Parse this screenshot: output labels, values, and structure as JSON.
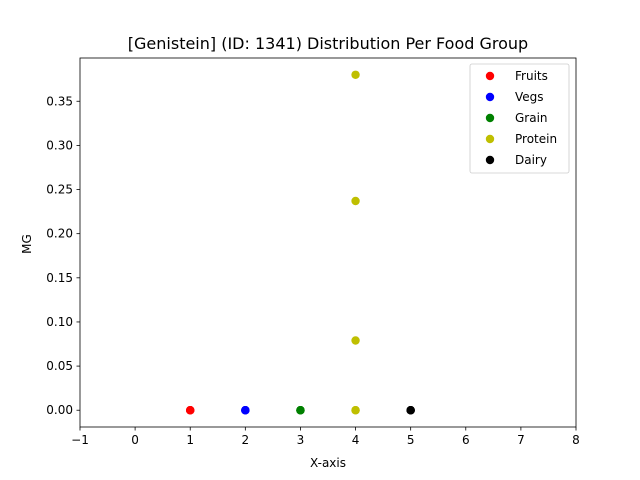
{
  "chart_data": {
    "type": "scatter",
    "title": "[Genistein] (ID: 1341) Distribution Per Food Group",
    "xlabel": "X-axis",
    "ylabel": "MG",
    "xlim": [
      -1,
      8
    ],
    "ylim": [
      -0.019,
      0.399
    ],
    "xticks": [
      "−1",
      "0",
      "1",
      "2",
      "3",
      "4",
      "5",
      "6",
      "7",
      "8"
    ],
    "yticks": [
      "0.00",
      "0.05",
      "0.10",
      "0.15",
      "0.20",
      "0.25",
      "0.30",
      "0.35"
    ],
    "grid": false,
    "legend_position": "top-right",
    "series": [
      {
        "name": "Fruits",
        "color": "#ff0000",
        "points": [
          [
            1,
            0.0
          ],
          [
            1,
            0.0
          ],
          [
            1,
            0.0
          ]
        ]
      },
      {
        "name": "Vegs",
        "color": "#0000ff",
        "points": [
          [
            2,
            0.0
          ],
          [
            2,
            0.0
          ],
          [
            2,
            0.0
          ]
        ]
      },
      {
        "name": "Grain",
        "color": "#008000",
        "points": [
          [
            3,
            0.0
          ],
          [
            3,
            0.0
          ],
          [
            3,
            0.0
          ]
        ]
      },
      {
        "name": "Protein",
        "color": "#bfbf00",
        "points": [
          [
            4,
            0.38
          ],
          [
            4,
            0.237
          ],
          [
            4,
            0.079
          ],
          [
            4,
            0.0
          ],
          [
            4,
            0.0
          ]
        ]
      },
      {
        "name": "Dairy",
        "color": "#000000",
        "points": [
          [
            5,
            0.0
          ],
          [
            5,
            0.0
          ],
          [
            5,
            0.0
          ]
        ]
      }
    ]
  }
}
